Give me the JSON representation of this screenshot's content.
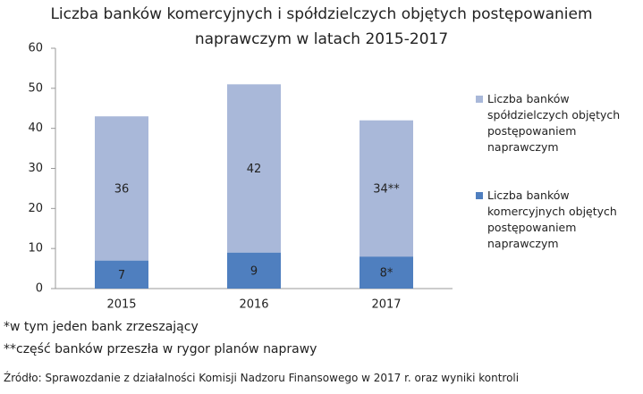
{
  "chart_data": {
    "type": "stacked-bar",
    "title": "Liczba banków komercyjnych i spółdzielczych objętych postępowaniem naprawczym w latach 2015-2017",
    "categories": [
      "2015",
      "2016",
      "2017"
    ],
    "series": [
      {
        "name": "Liczba banków komercyjnych objętych postępowaniem naprawczym",
        "color": "#4f7fbf",
        "values": [
          7,
          9,
          8
        ],
        "value_labels": [
          "7",
          "9",
          "8*"
        ]
      },
      {
        "name": "Liczba banków spółdzielczych objętych postępowaniem naprawczym",
        "color": "#a9b8d9",
        "values": [
          36,
          42,
          34
        ],
        "value_labels": [
          "36",
          "42",
          "34**"
        ]
      }
    ],
    "ylim": [
      0,
      60
    ],
    "yticks": [
      0,
      10,
      20,
      30,
      40,
      50,
      60
    ],
    "grid": false,
    "legend": "right",
    "footnotes": [
      "*w tym jeden bank zrzeszający",
      "**część banków przeszła w rygor planów naprawy"
    ],
    "source": "Źródło: Sprawozdanie z działalności Komisji Nadzoru Finansowego w 2017 r. oraz wyniki kontroli"
  }
}
